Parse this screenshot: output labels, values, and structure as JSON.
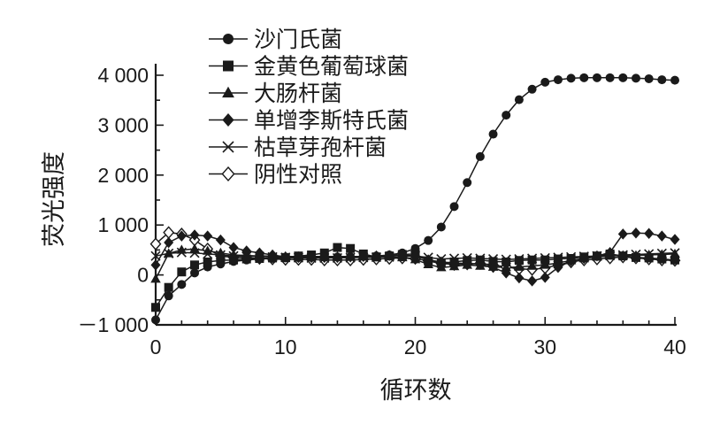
{
  "chart_data": {
    "type": "line",
    "xlabel": "循环数",
    "ylabel": "荧光强度",
    "xlim": [
      0,
      40
    ],
    "ylim": [
      -1000,
      4000
    ],
    "xticks": [
      {
        "value": 0,
        "label": "0"
      },
      {
        "value": 10,
        "label": "10"
      },
      {
        "value": 20,
        "label": "20"
      },
      {
        "value": 30,
        "label": "30"
      },
      {
        "value": 40,
        "label": "40"
      }
    ],
    "yticks": [
      {
        "value": 4000,
        "label": "4 000"
      },
      {
        "value": 3000,
        "label": "3 000"
      },
      {
        "value": 2000,
        "label": "2 000"
      },
      {
        "value": 1000,
        "label": "1 000"
      },
      {
        "value": 0,
        "label": "0"
      },
      {
        "value": -1000,
        "label": "－1 000"
      }
    ],
    "grid": false,
    "legend_position": "top-left",
    "x": [
      0,
      1,
      2,
      3,
      4,
      5,
      6,
      7,
      8,
      9,
      10,
      11,
      12,
      13,
      14,
      15,
      16,
      17,
      18,
      19,
      20,
      21,
      22,
      23,
      24,
      25,
      26,
      27,
      28,
      29,
      30,
      31,
      32,
      33,
      34,
      35,
      36,
      37,
      38,
      39,
      40
    ],
    "series": [
      {
        "name": "沙门氏菌",
        "marker": "circle",
        "values": [
          -900,
          -420,
          -190,
          40,
          160,
          220,
          270,
          300,
          320,
          330,
          340,
          345,
          350,
          355,
          360,
          365,
          370,
          380,
          400,
          440,
          530,
          690,
          960,
          1370,
          1850,
          2370,
          2820,
          3200,
          3510,
          3720,
          3860,
          3910,
          3940,
          3950,
          3950,
          3950,
          3950,
          3940,
          3930,
          3910,
          3900
        ]
      },
      {
        "name": "金黄色葡萄球菌",
        "marker": "square",
        "values": [
          -650,
          -250,
          60,
          200,
          260,
          290,
          300,
          320,
          330,
          340,
          350,
          380,
          400,
          440,
          550,
          530,
          420,
          360,
          380,
          410,
          420,
          280,
          230,
          260,
          290,
          300,
          270,
          260,
          290,
          300,
          300,
          320,
          330,
          360,
          380,
          420,
          380,
          350,
          340,
          320,
          300
        ]
      },
      {
        "name": "大肠杆菌",
        "marker": "triangle",
        "values": [
          -80,
          430,
          500,
          520,
          480,
          440,
          400,
          390,
          380,
          380,
          370,
          370,
          370,
          370,
          370,
          370,
          370,
          370,
          370,
          350,
          310,
          210,
          150,
          170,
          200,
          180,
          160,
          150,
          160,
          180,
          200,
          240,
          290,
          330,
          360,
          380,
          390,
          390,
          400,
          410,
          420
        ]
      },
      {
        "name": "单增李斯特氏菌",
        "marker": "diamond",
        "values": [
          200,
          650,
          780,
          800,
          780,
          700,
          550,
          480,
          440,
          400,
          360,
          350,
          350,
          350,
          350,
          360,
          370,
          380,
          390,
          400,
          380,
          300,
          260,
          240,
          230,
          220,
          150,
          40,
          -60,
          -120,
          -50,
          150,
          280,
          330,
          380,
          450,
          820,
          840,
          830,
          780,
          710
        ]
      },
      {
        "name": "枯草芽孢杆菌",
        "marker": "x",
        "values": [
          380,
          430,
          450,
          440,
          420,
          400,
          380,
          370,
          370,
          360,
          350,
          345,
          340,
          340,
          340,
          345,
          350,
          355,
          360,
          370,
          380,
          350,
          320,
          330,
          340,
          330,
          320,
          310,
          320,
          330,
          340,
          350,
          360,
          370,
          380,
          390,
          400,
          410,
          420,
          430,
          440
        ]
      },
      {
        "name": "阴性对照",
        "marker": "diamond-open",
        "values": [
          620,
          850,
          820,
          700,
          520,
          380,
          350,
          340,
          330,
          320,
          310,
          310,
          310,
          300,
          300,
          300,
          310,
          320,
          330,
          340,
          330,
          280,
          230,
          210,
          220,
          230,
          200,
          160,
          120,
          110,
          140,
          200,
          260,
          300,
          320,
          340,
          360,
          340,
          320,
          300,
          290
        ]
      }
    ]
  }
}
